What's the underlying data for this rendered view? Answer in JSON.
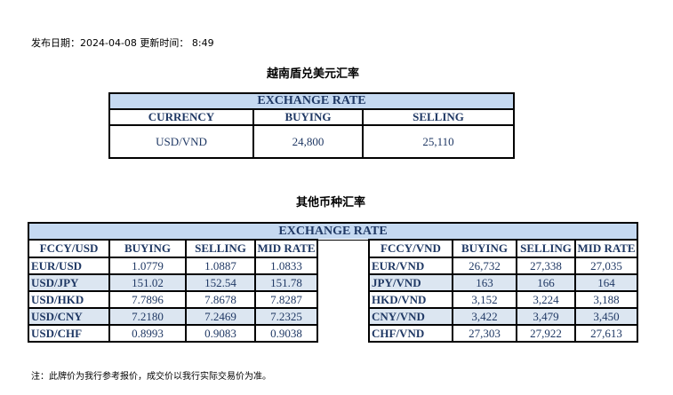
{
  "publish": {
    "date_label": "发布日期：",
    "date": "2024-04-08",
    "time_label": " 更新时间：",
    "time": " 8:49"
  },
  "usd_vnd": {
    "title": "越南盾兑美元汇率",
    "header": "EXCHANGE RATE",
    "columns": [
      "CURRENCY",
      "BUYING",
      "SELLING"
    ],
    "row": [
      "USD/VND",
      "24,800",
      "25,110"
    ]
  },
  "others": {
    "title": "其他币种汇率",
    "header": "EXCHANGE  RATE",
    "columns_left": [
      "FCCY/USD",
      "BUYING",
      "SELLING",
      "MID RATE"
    ],
    "columns_right": [
      "FCCY/VND",
      "BUYING",
      "SELLING",
      "MID RATE"
    ],
    "rows": [
      {
        "left": [
          "EUR/USD",
          "1.0779",
          "1.0887",
          "1.0833"
        ],
        "right": [
          "EUR/VND",
          "26,732",
          "27,338",
          "27,035"
        ]
      },
      {
        "left": [
          "USD/JPY",
          "151.02",
          "152.54",
          "151.78"
        ],
        "right": [
          "JPY/VND",
          "163",
          "166",
          "164"
        ]
      },
      {
        "left": [
          "USD/HKD",
          "7.7896",
          "7.8678",
          "7.8287"
        ],
        "right": [
          "HKD/VND",
          "3,152",
          "3,224",
          "3,188"
        ]
      },
      {
        "left": [
          "USD/CNY",
          "7.2180",
          "7.2469",
          "7.2325"
        ],
        "right": [
          "CNY/VND",
          "3,422",
          "3,479",
          "3,450"
        ]
      },
      {
        "left": [
          "USD/CHF",
          "0.8993",
          "0.9083",
          "0.9038"
        ],
        "right": [
          "CHF/VND",
          "27,303",
          "27,922",
          "27,613"
        ]
      }
    ]
  },
  "note": "注：此牌价为我行参考报价，成交价以我行实际交易价为准。",
  "colors": {
    "header_bg": "#c5d9f1",
    "alt_row_bg": "#dce6f1",
    "text": "#1f3864"
  }
}
